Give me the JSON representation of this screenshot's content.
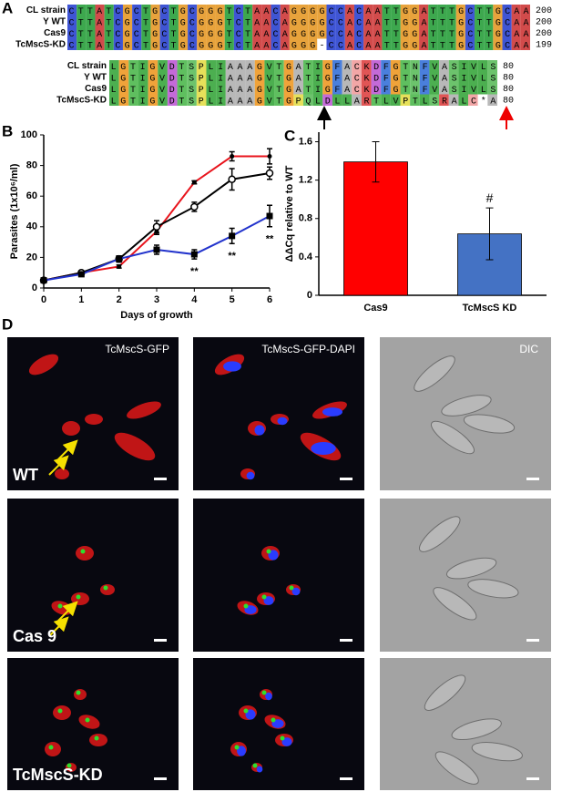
{
  "panel_labels": [
    "A",
    "B",
    "C",
    "D"
  ],
  "alignment_dna": {
    "rows": [
      {
        "name": "CL strain",
        "sequence": "CTTATCGCTGCTGCGGGTCTAACAGGGGCCACAATTGGATTTGCTTGCAA",
        "length": 200
      },
      {
        "name": "Y WT",
        "sequence": "CTTATCGCTGCTGCGGGTCTAACAGGGGCCACAATTGGATTTGCTTGCAA",
        "length": 200
      },
      {
        "name": "Cas9",
        "sequence": "CTTATCGCTGCTGCGGGTCTAACAGGGGCCACAATTGGATTTGCTTGCAA",
        "length": 200
      },
      {
        "name": "TcMscS-KD",
        "sequence": "CTTATCGCTGCTGCGGGTCTAACAGGG-CCACAATTGGATTTGCTTGCAA",
        "length": 199
      }
    ],
    "colors": {
      "A": "#d24b4b",
      "C": "#3f55d4",
      "G": "#e8a33c",
      "T": "#3da84e",
      "-": "#ffffff"
    }
  },
  "alignment_protein": {
    "rows": [
      {
        "name": "CL strain",
        "sequence": "LGTIGVDTSPLIAAAGVTGATIGFACKDFGTNFVASIVLS",
        "length": 80
      },
      {
        "name": "Y WT",
        "sequence": "LGTIGVDTSPLIAAAGVTGATIGFACKDFGTNFVASIVLS",
        "length": 80
      },
      {
        "name": "Cas9",
        "sequence": "LGTIGVDTSPLIAAAGVTGATIGFACKDFGTNFVASIVLS",
        "length": 80
      },
      {
        "name": "TcMscS-KD",
        "sequence": "LGTIGVDTSPLIAAAGVTGPQLDLLARTLVPTLSRALC*A",
        "length": 80
      }
    ],
    "colors": {
      "L": "#4caf50",
      "G": "#f0a33a",
      "T": "#5fbf5f",
      "I": "#4caf50",
      "V": "#4caf50",
      "D": "#c46ad8",
      "S": "#6cc36c",
      "P": "#e6e05a",
      "A": "#b8b8b8",
      "F": "#4a7fdc",
      "C": "#f2a6a6",
      "K": "#e05555",
      "N": "#6cc36c",
      "Q": "#6cc36c",
      "R": "#e05555",
      "*": "#ffffff"
    }
  },
  "chart_data": [
    {
      "type": "line",
      "y_label": "Parasites (1x10⁶/ml)",
      "x_label": "Days of growth",
      "x": [
        0,
        1,
        2,
        3,
        4,
        5,
        6
      ],
      "xlim": [
        0,
        6
      ],
      "xticks": [
        0,
        1,
        2,
        3,
        4,
        5,
        6
      ],
      "ylim": [
        0,
        100
      ],
      "yticks": [
        0,
        20,
        40,
        60,
        80,
        100
      ],
      "series": [
        {
          "color": "#e8141c",
          "marker": "dot",
          "values": [
            5,
            10,
            14,
            37,
            69,
            86,
            86
          ],
          "errors": [
            1,
            1,
            1,
            2,
            1,
            3,
            5
          ]
        },
        {
          "color": "#000000",
          "marker": "open-circle",
          "values": [
            5,
            10,
            19,
            40,
            53,
            71,
            75
          ],
          "errors": [
            1,
            1,
            2,
            4,
            3,
            7,
            4
          ]
        },
        {
          "color": "#2233cc",
          "marker": "square",
          "values": [
            5,
            9,
            19,
            25,
            22,
            34,
            47
          ],
          "errors": [
            1,
            1,
            2,
            3,
            3,
            5,
            7
          ]
        }
      ],
      "annotations": [
        {
          "text": "**",
          "x": 4
        },
        {
          "text": "**",
          "x": 5
        },
        {
          "text": "**",
          "x": 6
        }
      ]
    },
    {
      "type": "bar",
      "y_label": "ΔΔCq relative to WT",
      "categories": [
        "Cas9",
        "TcMscS KD"
      ],
      "values": [
        1.39,
        0.64
      ],
      "errors": [
        0.21,
        0.27
      ],
      "colors": [
        "#ff0000",
        "#4472c4"
      ],
      "ylim": [
        0,
        1.7
      ],
      "yticks": [
        0,
        0.4,
        0.8,
        1.2,
        1.6
      ],
      "annotations": [
        {
          "text": "#",
          "category_index": 1
        }
      ]
    }
  ],
  "micrographs": {
    "columns": [
      "TcMscS-GFP",
      "TcMscS-GFP-DAPI",
      "DIC"
    ],
    "rows": [
      "WT",
      "Cas 9",
      "TcMscS-KD"
    ]
  }
}
